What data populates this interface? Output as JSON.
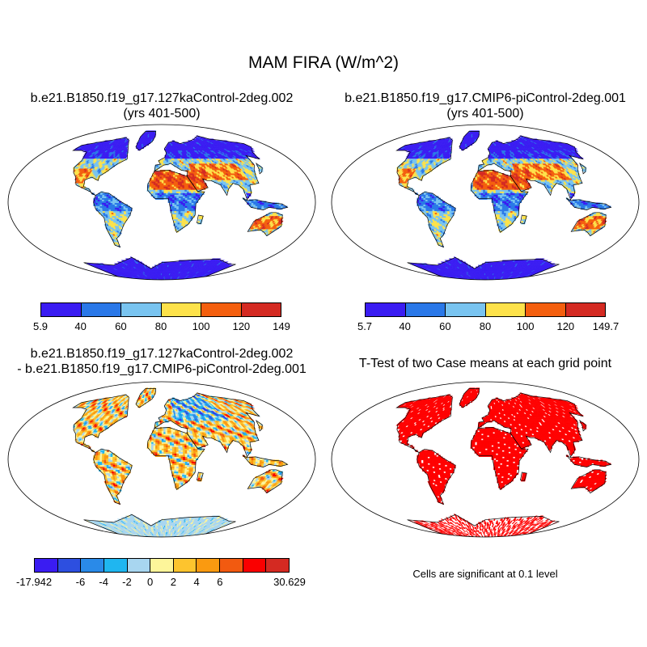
{
  "title": "MAM FIRA (W/m^2)",
  "panels": [
    {
      "title_line1": "b.e21.B1850.f19_g17.127kaControl-2deg.002",
      "title_line2": "(yrs 401-500)",
      "colorbar": {
        "colors": [
          "#3a1cf2",
          "#2a78e8",
          "#79c4f0",
          "#fde24a",
          "#f45f0e",
          "#d42a22"
        ],
        "labels": [
          "5.9",
          "40",
          "60",
          "80",
          "100",
          "120",
          "149"
        ]
      }
    },
    {
      "title_line1": "b.e21.B1850.f19_g17.CMIP6-piControl-2deg.001",
      "title_line2": "(yrs 401-500)",
      "colorbar": {
        "colors": [
          "#3a1cf2",
          "#2a78e8",
          "#79c4f0",
          "#fde24a",
          "#f45f0e",
          "#d42a22"
        ],
        "labels": [
          "5.7",
          "40",
          "60",
          "80",
          "100",
          "120",
          "149.7"
        ]
      }
    },
    {
      "title_line1": "b.e21.B1850.f19_g17.127kaControl-2deg.002",
      "title_line2": "- b.e21.B1850.f19_g17.CMIP6-piControl-2deg.001",
      "colorbar": {
        "colors": [
          "#3a1cf2",
          "#2d4fe0",
          "#2a8ae8",
          "#1fb6f0",
          "#a8d6f0",
          "#fdf59a",
          "#fdc42e",
          "#fa9a10",
          "#f25a10",
          "#fa0000",
          "#d42a22"
        ],
        "labels": [
          "-17.942",
          "",
          "-6",
          "-4",
          "-2",
          "0",
          "2",
          "4",
          "6",
          "",
          "",
          "30.629"
        ]
      }
    },
    {
      "title_line1": "T-Test of two Case means at each grid point",
      "note": "Cells are significant at 0.1 level",
      "fill_color": "#ff0000"
    }
  ]
}
